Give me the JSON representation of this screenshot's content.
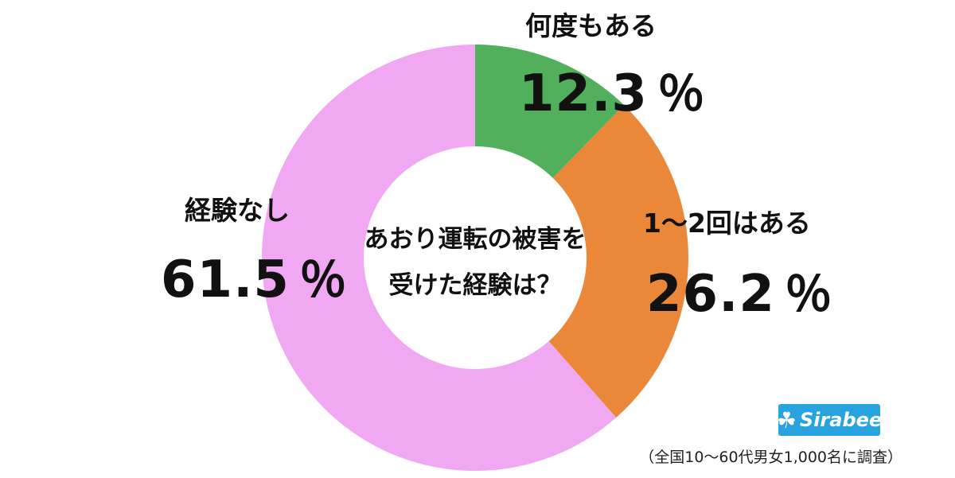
{
  "chart_data": {
    "type": "pie",
    "title": "あおり運転の被害を受けた経験は？",
    "title_lines": [
      "あおり運転の被害を",
      "受けた経験は？"
    ],
    "unit": "％",
    "slices": [
      {
        "label": "何度もある",
        "value": 12.3,
        "display": "12.3",
        "color": "#52af5b"
      },
      {
        "label": "1〜2回はある",
        "value": 26.2,
        "display": "26.2",
        "color": "#ea8738"
      },
      {
        "label": "経験なし",
        "value": 61.5,
        "display": "61.5",
        "color": "#f1a8f2"
      }
    ],
    "start_angle_deg": 0,
    "direction": "clockwise",
    "donut": true
  },
  "logo": {
    "text": "Sirabee",
    "color": "#27a3e0"
  },
  "source": "（全国10〜60代男女1,000名に調査）"
}
